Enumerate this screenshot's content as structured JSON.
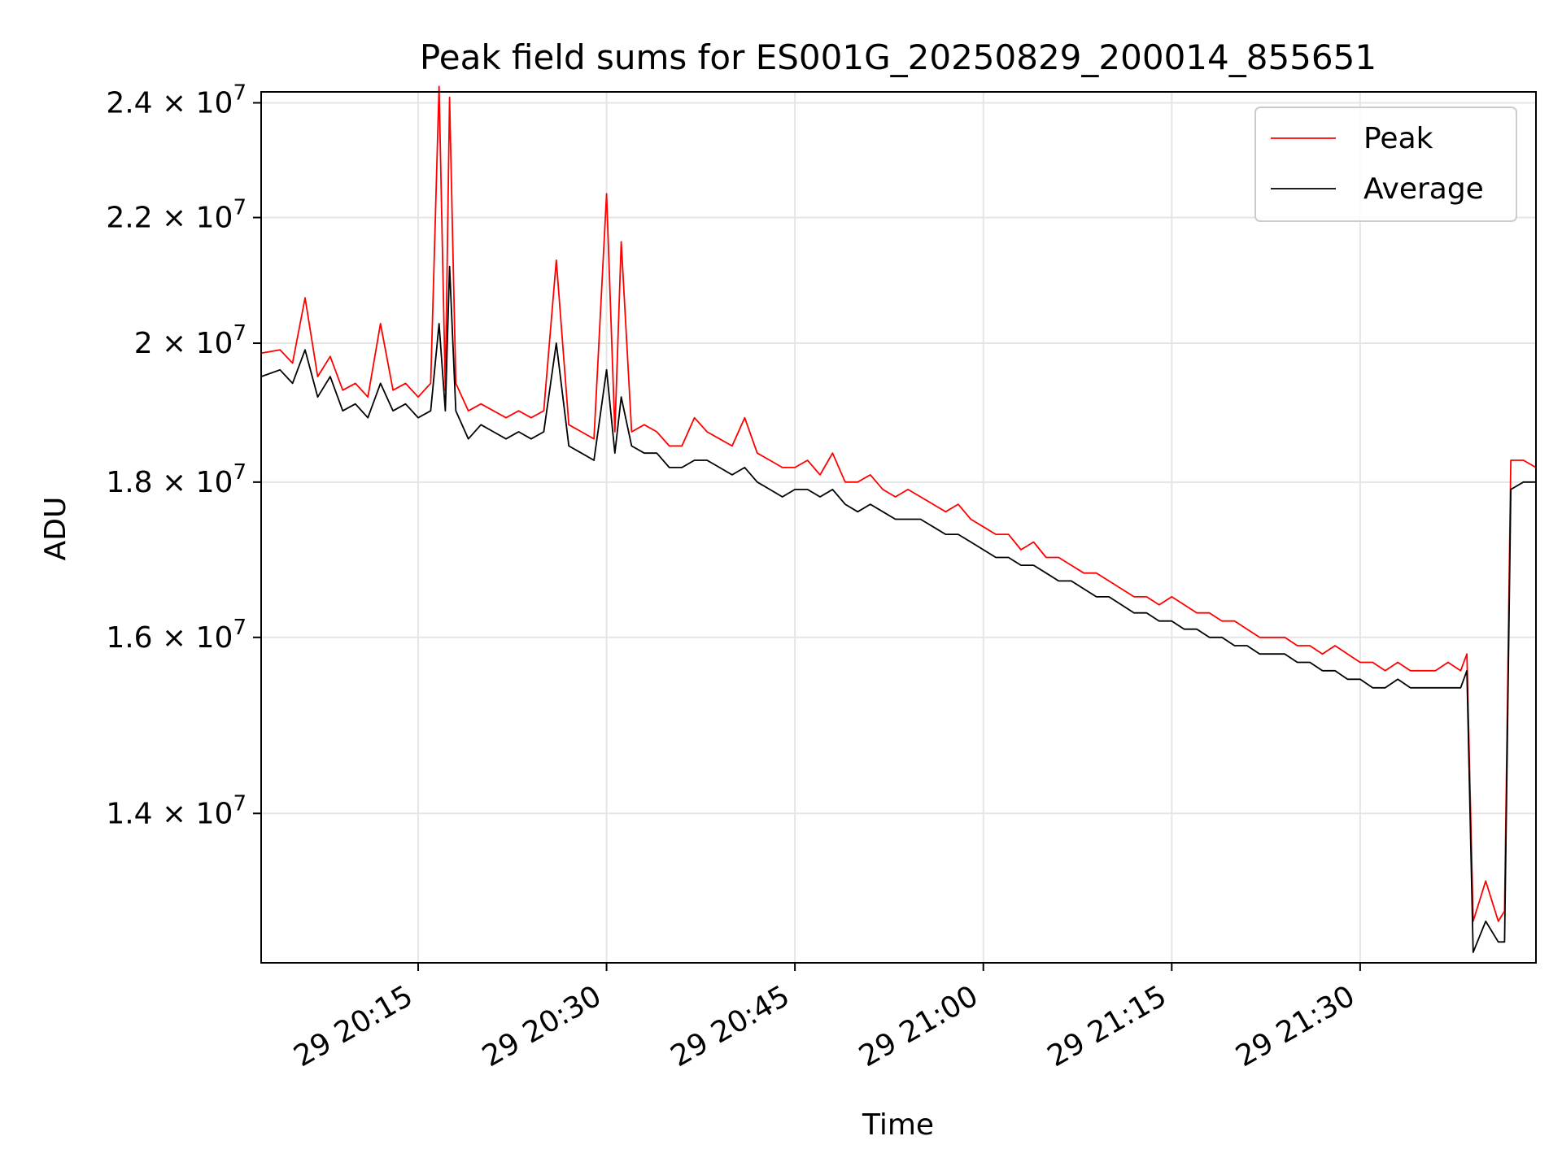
{
  "chart_data": {
    "type": "line",
    "title": "Peak field sums for ES001G_20250829_200014_855651",
    "xlabel": "Time",
    "ylabel": "ADU",
    "y_scale": "log",
    "x_format": "DD HH:MM",
    "x_ticks": [
      "2025-08-29T20:15",
      "2025-08-29T20:30",
      "2025-08-29T20:45",
      "2025-08-29T21:00",
      "2025-08-29T21:15",
      "2025-08-29T21:30"
    ],
    "x_tick_labels": [
      "29 20:15",
      "29 20:30",
      "29 20:45",
      "29 21:00",
      "29 21:15",
      "29 21:30"
    ],
    "y_ticks": [
      14000000,
      16000000,
      18000000,
      20000000,
      22000000,
      24000000
    ],
    "y_tick_mantissas": [
      "1.4",
      "1.6",
      "1.8",
      "2",
      "2.2",
      "2.4"
    ],
    "y_tick_base": "10",
    "y_tick_exponent": "7",
    "xlim": [
      "2025-08-29T20:02:30",
      "2025-08-29T21:44:00"
    ],
    "ylim": [
      12500000,
      24200000
    ],
    "grid": true,
    "legend_position": "top-right",
    "series": [
      {
        "name": "Peak",
        "color": "#ff0000",
        "points": [
          [
            "2025-08-29T20:02:30",
            19850000
          ],
          [
            "2025-08-29T20:04:00",
            19900000
          ],
          [
            "2025-08-29T20:05:00",
            19700000
          ],
          [
            "2025-08-29T20:06:00",
            20700000
          ],
          [
            "2025-08-29T20:07:00",
            19500000
          ],
          [
            "2025-08-29T20:08:00",
            19800000
          ],
          [
            "2025-08-29T20:09:00",
            19300000
          ],
          [
            "2025-08-29T20:10:00",
            19400000
          ],
          [
            "2025-08-29T20:11:00",
            19200000
          ],
          [
            "2025-08-29T20:12:00",
            20300000
          ],
          [
            "2025-08-29T20:13:00",
            19300000
          ],
          [
            "2025-08-29T20:14:00",
            19400000
          ],
          [
            "2025-08-29T20:15:00",
            19200000
          ],
          [
            "2025-08-29T20:16:00",
            19400000
          ],
          [
            "2025-08-29T20:16:40",
            24300000
          ],
          [
            "2025-08-29T20:17:10",
            19300000
          ],
          [
            "2025-08-29T20:17:30",
            24100000
          ],
          [
            "2025-08-29T20:18:00",
            19400000
          ],
          [
            "2025-08-29T20:19:00",
            19000000
          ],
          [
            "2025-08-29T20:20:00",
            19100000
          ],
          [
            "2025-08-29T20:21:00",
            19000000
          ],
          [
            "2025-08-29T20:22:00",
            18900000
          ],
          [
            "2025-08-29T20:23:00",
            19000000
          ],
          [
            "2025-08-29T20:24:00",
            18900000
          ],
          [
            "2025-08-29T20:25:00",
            19000000
          ],
          [
            "2025-08-29T20:26:00",
            21300000
          ],
          [
            "2025-08-29T20:27:00",
            18800000
          ],
          [
            "2025-08-29T20:28:00",
            18700000
          ],
          [
            "2025-08-29T20:29:00",
            18600000
          ],
          [
            "2025-08-29T20:30:00",
            22400000
          ],
          [
            "2025-08-29T20:30:40",
            18700000
          ],
          [
            "2025-08-29T20:31:10",
            21600000
          ],
          [
            "2025-08-29T20:32:00",
            18700000
          ],
          [
            "2025-08-29T20:33:00",
            18800000
          ],
          [
            "2025-08-29T20:34:00",
            18700000
          ],
          [
            "2025-08-29T20:35:00",
            18500000
          ],
          [
            "2025-08-29T20:36:00",
            18500000
          ],
          [
            "2025-08-29T20:37:00",
            18900000
          ],
          [
            "2025-08-29T20:38:00",
            18700000
          ],
          [
            "2025-08-29T20:39:00",
            18600000
          ],
          [
            "2025-08-29T20:40:00",
            18500000
          ],
          [
            "2025-08-29T20:41:00",
            18900000
          ],
          [
            "2025-08-29T20:42:00",
            18400000
          ],
          [
            "2025-08-29T20:43:00",
            18300000
          ],
          [
            "2025-08-29T20:44:00",
            18200000
          ],
          [
            "2025-08-29T20:45:00",
            18200000
          ],
          [
            "2025-08-29T20:46:00",
            18300000
          ],
          [
            "2025-08-29T20:47:00",
            18100000
          ],
          [
            "2025-08-29T20:48:00",
            18400000
          ],
          [
            "2025-08-29T20:49:00",
            18000000
          ],
          [
            "2025-08-29T20:50:00",
            18000000
          ],
          [
            "2025-08-29T20:51:00",
            18100000
          ],
          [
            "2025-08-29T20:52:00",
            17900000
          ],
          [
            "2025-08-29T20:53:00",
            17800000
          ],
          [
            "2025-08-29T20:54:00",
            17900000
          ],
          [
            "2025-08-29T20:55:00",
            17800000
          ],
          [
            "2025-08-29T20:56:00",
            17700000
          ],
          [
            "2025-08-29T20:57:00",
            17600000
          ],
          [
            "2025-08-29T20:58:00",
            17700000
          ],
          [
            "2025-08-29T20:59:00",
            17500000
          ],
          [
            "2025-08-29T21:00:00",
            17400000
          ],
          [
            "2025-08-29T21:01:00",
            17300000
          ],
          [
            "2025-08-29T21:02:00",
            17300000
          ],
          [
            "2025-08-29T21:03:00",
            17100000
          ],
          [
            "2025-08-29T21:04:00",
            17200000
          ],
          [
            "2025-08-29T21:05:00",
            17000000
          ],
          [
            "2025-08-29T21:06:00",
            17000000
          ],
          [
            "2025-08-29T21:07:00",
            16900000
          ],
          [
            "2025-08-29T21:08:00",
            16800000
          ],
          [
            "2025-08-29T21:09:00",
            16800000
          ],
          [
            "2025-08-29T21:10:00",
            16700000
          ],
          [
            "2025-08-29T21:11:00",
            16600000
          ],
          [
            "2025-08-29T21:12:00",
            16500000
          ],
          [
            "2025-08-29T21:13:00",
            16500000
          ],
          [
            "2025-08-29T21:14:00",
            16400000
          ],
          [
            "2025-08-29T21:15:00",
            16500000
          ],
          [
            "2025-08-29T21:16:00",
            16400000
          ],
          [
            "2025-08-29T21:17:00",
            16300000
          ],
          [
            "2025-08-29T21:18:00",
            16300000
          ],
          [
            "2025-08-29T21:19:00",
            16200000
          ],
          [
            "2025-08-29T21:20:00",
            16200000
          ],
          [
            "2025-08-29T21:21:00",
            16100000
          ],
          [
            "2025-08-29T21:22:00",
            16000000
          ],
          [
            "2025-08-29T21:23:00",
            16000000
          ],
          [
            "2025-08-29T21:24:00",
            16000000
          ],
          [
            "2025-08-29T21:25:00",
            15900000
          ],
          [
            "2025-08-29T21:26:00",
            15900000
          ],
          [
            "2025-08-29T21:27:00",
            15800000
          ],
          [
            "2025-08-29T21:28:00",
            15900000
          ],
          [
            "2025-08-29T21:29:00",
            15800000
          ],
          [
            "2025-08-29T21:30:00",
            15700000
          ],
          [
            "2025-08-29T21:31:00",
            15700000
          ],
          [
            "2025-08-29T21:32:00",
            15600000
          ],
          [
            "2025-08-29T21:33:00",
            15700000
          ],
          [
            "2025-08-29T21:34:00",
            15600000
          ],
          [
            "2025-08-29T21:35:00",
            15600000
          ],
          [
            "2025-08-29T21:36:00",
            15600000
          ],
          [
            "2025-08-29T21:37:00",
            15700000
          ],
          [
            "2025-08-29T21:38:00",
            15600000
          ],
          [
            "2025-08-29T21:38:30",
            15800000
          ],
          [
            "2025-08-29T21:39:00",
            12900000
          ],
          [
            "2025-08-29T21:40:00",
            13300000
          ],
          [
            "2025-08-29T21:41:00",
            12900000
          ],
          [
            "2025-08-29T21:41:30",
            13000000
          ],
          [
            "2025-08-29T21:42:00",
            18300000
          ],
          [
            "2025-08-29T21:43:00",
            18300000
          ],
          [
            "2025-08-29T21:44:00",
            18200000
          ]
        ]
      },
      {
        "name": "Average",
        "color": "#000000",
        "points": [
          [
            "2025-08-29T20:02:30",
            19500000
          ],
          [
            "2025-08-29T20:04:00",
            19600000
          ],
          [
            "2025-08-29T20:05:00",
            19400000
          ],
          [
            "2025-08-29T20:06:00",
            19900000
          ],
          [
            "2025-08-29T20:07:00",
            19200000
          ],
          [
            "2025-08-29T20:08:00",
            19500000
          ],
          [
            "2025-08-29T20:09:00",
            19000000
          ],
          [
            "2025-08-29T20:10:00",
            19100000
          ],
          [
            "2025-08-29T20:11:00",
            18900000
          ],
          [
            "2025-08-29T20:12:00",
            19400000
          ],
          [
            "2025-08-29T20:13:00",
            19000000
          ],
          [
            "2025-08-29T20:14:00",
            19100000
          ],
          [
            "2025-08-29T20:15:00",
            18900000
          ],
          [
            "2025-08-29T20:16:00",
            19000000
          ],
          [
            "2025-08-29T20:16:40",
            20300000
          ],
          [
            "2025-08-29T20:17:10",
            19000000
          ],
          [
            "2025-08-29T20:17:30",
            21200000
          ],
          [
            "2025-08-29T20:18:00",
            19000000
          ],
          [
            "2025-08-29T20:19:00",
            18600000
          ],
          [
            "2025-08-29T20:20:00",
            18800000
          ],
          [
            "2025-08-29T20:21:00",
            18700000
          ],
          [
            "2025-08-29T20:22:00",
            18600000
          ],
          [
            "2025-08-29T20:23:00",
            18700000
          ],
          [
            "2025-08-29T20:24:00",
            18600000
          ],
          [
            "2025-08-29T20:25:00",
            18700000
          ],
          [
            "2025-08-29T20:26:00",
            20000000
          ],
          [
            "2025-08-29T20:27:00",
            18500000
          ],
          [
            "2025-08-29T20:28:00",
            18400000
          ],
          [
            "2025-08-29T20:29:00",
            18300000
          ],
          [
            "2025-08-29T20:30:00",
            19600000
          ],
          [
            "2025-08-29T20:30:40",
            18400000
          ],
          [
            "2025-08-29T20:31:10",
            19200000
          ],
          [
            "2025-08-29T20:32:00",
            18500000
          ],
          [
            "2025-08-29T20:33:00",
            18400000
          ],
          [
            "2025-08-29T20:34:00",
            18400000
          ],
          [
            "2025-08-29T20:35:00",
            18200000
          ],
          [
            "2025-08-29T20:36:00",
            18200000
          ],
          [
            "2025-08-29T20:37:00",
            18300000
          ],
          [
            "2025-08-29T20:38:00",
            18300000
          ],
          [
            "2025-08-29T20:39:00",
            18200000
          ],
          [
            "2025-08-29T20:40:00",
            18100000
          ],
          [
            "2025-08-29T20:41:00",
            18200000
          ],
          [
            "2025-08-29T20:42:00",
            18000000
          ],
          [
            "2025-08-29T20:43:00",
            17900000
          ],
          [
            "2025-08-29T20:44:00",
            17800000
          ],
          [
            "2025-08-29T20:45:00",
            17900000
          ],
          [
            "2025-08-29T20:46:00",
            17900000
          ],
          [
            "2025-08-29T20:47:00",
            17800000
          ],
          [
            "2025-08-29T20:48:00",
            17900000
          ],
          [
            "2025-08-29T20:49:00",
            17700000
          ],
          [
            "2025-08-29T20:50:00",
            17600000
          ],
          [
            "2025-08-29T20:51:00",
            17700000
          ],
          [
            "2025-08-29T20:52:00",
            17600000
          ],
          [
            "2025-08-29T20:53:00",
            17500000
          ],
          [
            "2025-08-29T20:54:00",
            17500000
          ],
          [
            "2025-08-29T20:55:00",
            17500000
          ],
          [
            "2025-08-29T20:56:00",
            17400000
          ],
          [
            "2025-08-29T20:57:00",
            17300000
          ],
          [
            "2025-08-29T20:58:00",
            17300000
          ],
          [
            "2025-08-29T20:59:00",
            17200000
          ],
          [
            "2025-08-29T21:00:00",
            17100000
          ],
          [
            "2025-08-29T21:01:00",
            17000000
          ],
          [
            "2025-08-29T21:02:00",
            17000000
          ],
          [
            "2025-08-29T21:03:00",
            16900000
          ],
          [
            "2025-08-29T21:04:00",
            16900000
          ],
          [
            "2025-08-29T21:05:00",
            16800000
          ],
          [
            "2025-08-29T21:06:00",
            16700000
          ],
          [
            "2025-08-29T21:07:00",
            16700000
          ],
          [
            "2025-08-29T21:08:00",
            16600000
          ],
          [
            "2025-08-29T21:09:00",
            16500000
          ],
          [
            "2025-08-29T21:10:00",
            16500000
          ],
          [
            "2025-08-29T21:11:00",
            16400000
          ],
          [
            "2025-08-29T21:12:00",
            16300000
          ],
          [
            "2025-08-29T21:13:00",
            16300000
          ],
          [
            "2025-08-29T21:14:00",
            16200000
          ],
          [
            "2025-08-29T21:15:00",
            16200000
          ],
          [
            "2025-08-29T21:16:00",
            16100000
          ],
          [
            "2025-08-29T21:17:00",
            16100000
          ],
          [
            "2025-08-29T21:18:00",
            16000000
          ],
          [
            "2025-08-29T21:19:00",
            16000000
          ],
          [
            "2025-08-29T21:20:00",
            15900000
          ],
          [
            "2025-08-29T21:21:00",
            15900000
          ],
          [
            "2025-08-29T21:22:00",
            15800000
          ],
          [
            "2025-08-29T21:23:00",
            15800000
          ],
          [
            "2025-08-29T21:24:00",
            15800000
          ],
          [
            "2025-08-29T21:25:00",
            15700000
          ],
          [
            "2025-08-29T21:26:00",
            15700000
          ],
          [
            "2025-08-29T21:27:00",
            15600000
          ],
          [
            "2025-08-29T21:28:00",
            15600000
          ],
          [
            "2025-08-29T21:29:00",
            15500000
          ],
          [
            "2025-08-29T21:30:00",
            15500000
          ],
          [
            "2025-08-29T21:31:00",
            15400000
          ],
          [
            "2025-08-29T21:32:00",
            15400000
          ],
          [
            "2025-08-29T21:33:00",
            15500000
          ],
          [
            "2025-08-29T21:34:00",
            15400000
          ],
          [
            "2025-08-29T21:35:00",
            15400000
          ],
          [
            "2025-08-29T21:36:00",
            15400000
          ],
          [
            "2025-08-29T21:37:00",
            15400000
          ],
          [
            "2025-08-29T21:38:00",
            15400000
          ],
          [
            "2025-08-29T21:38:30",
            15600000
          ],
          [
            "2025-08-29T21:39:00",
            12600000
          ],
          [
            "2025-08-29T21:40:00",
            12900000
          ],
          [
            "2025-08-29T21:41:00",
            12700000
          ],
          [
            "2025-08-29T21:41:30",
            12700000
          ],
          [
            "2025-08-29T21:42:00",
            17900000
          ],
          [
            "2025-08-29T21:43:00",
            18000000
          ],
          [
            "2025-08-29T21:44:00",
            18000000
          ]
        ]
      }
    ]
  }
}
